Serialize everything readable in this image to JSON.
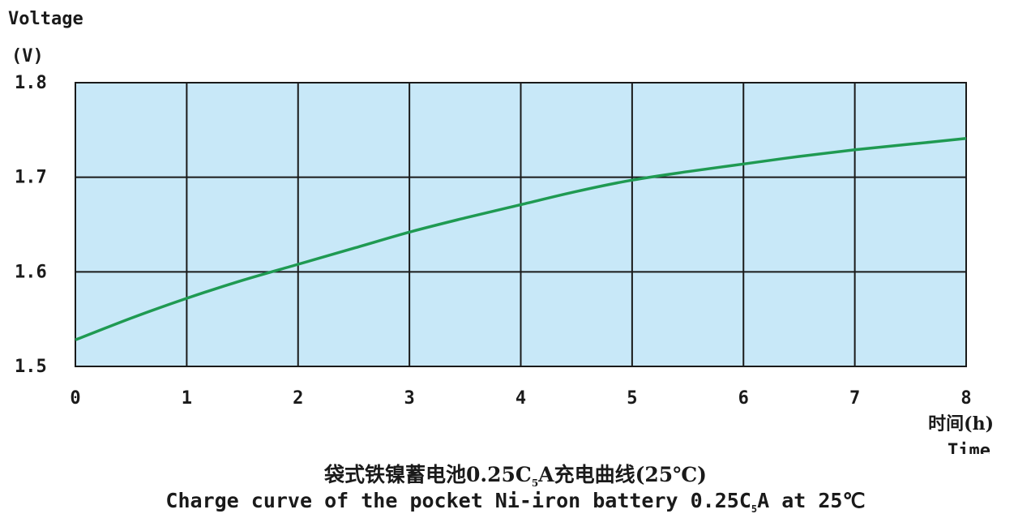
{
  "chart_data": {
    "type": "line",
    "ylabel": "Voltage",
    "yunit": "(V)",
    "xlabel_cn": "时间(h)",
    "xlabel_en": "Time",
    "xlim": [
      0,
      8
    ],
    "ylim": [
      1.5,
      1.8
    ],
    "xticks": [
      "0",
      "1",
      "2",
      "3",
      "4",
      "5",
      "6",
      "7",
      "8"
    ],
    "yticks": [
      "1.5",
      "1.6",
      "1.7",
      "1.8"
    ],
    "grid": true,
    "colors": {
      "line": "#1f9a52",
      "plot_bg": "#c8e8f8",
      "grid": "#1a1a1a"
    },
    "series": [
      {
        "x": [
          0,
          0.5,
          1,
          1.5,
          2,
          2.5,
          3,
          3.5,
          4,
          4.5,
          5,
          5.5,
          6,
          6.5,
          7,
          7.5,
          8
        ],
        "y": [
          1.528,
          1.551,
          1.572,
          1.591,
          1.608,
          1.625,
          1.642,
          1.657,
          1.671,
          1.685,
          1.697,
          1.706,
          1.714,
          1.722,
          1.729,
          1.735,
          1.741
        ]
      }
    ]
  },
  "caption": {
    "cn_prefix": "袋式铁镍蓄电池0.25C",
    "cn_sub": "5",
    "cn_suffix": "A充电曲线(25℃)",
    "en_prefix": "Charge curve of the pocket Ni-iron battery 0.25C",
    "en_sub": "5",
    "en_suffix": "A at 25℃"
  }
}
